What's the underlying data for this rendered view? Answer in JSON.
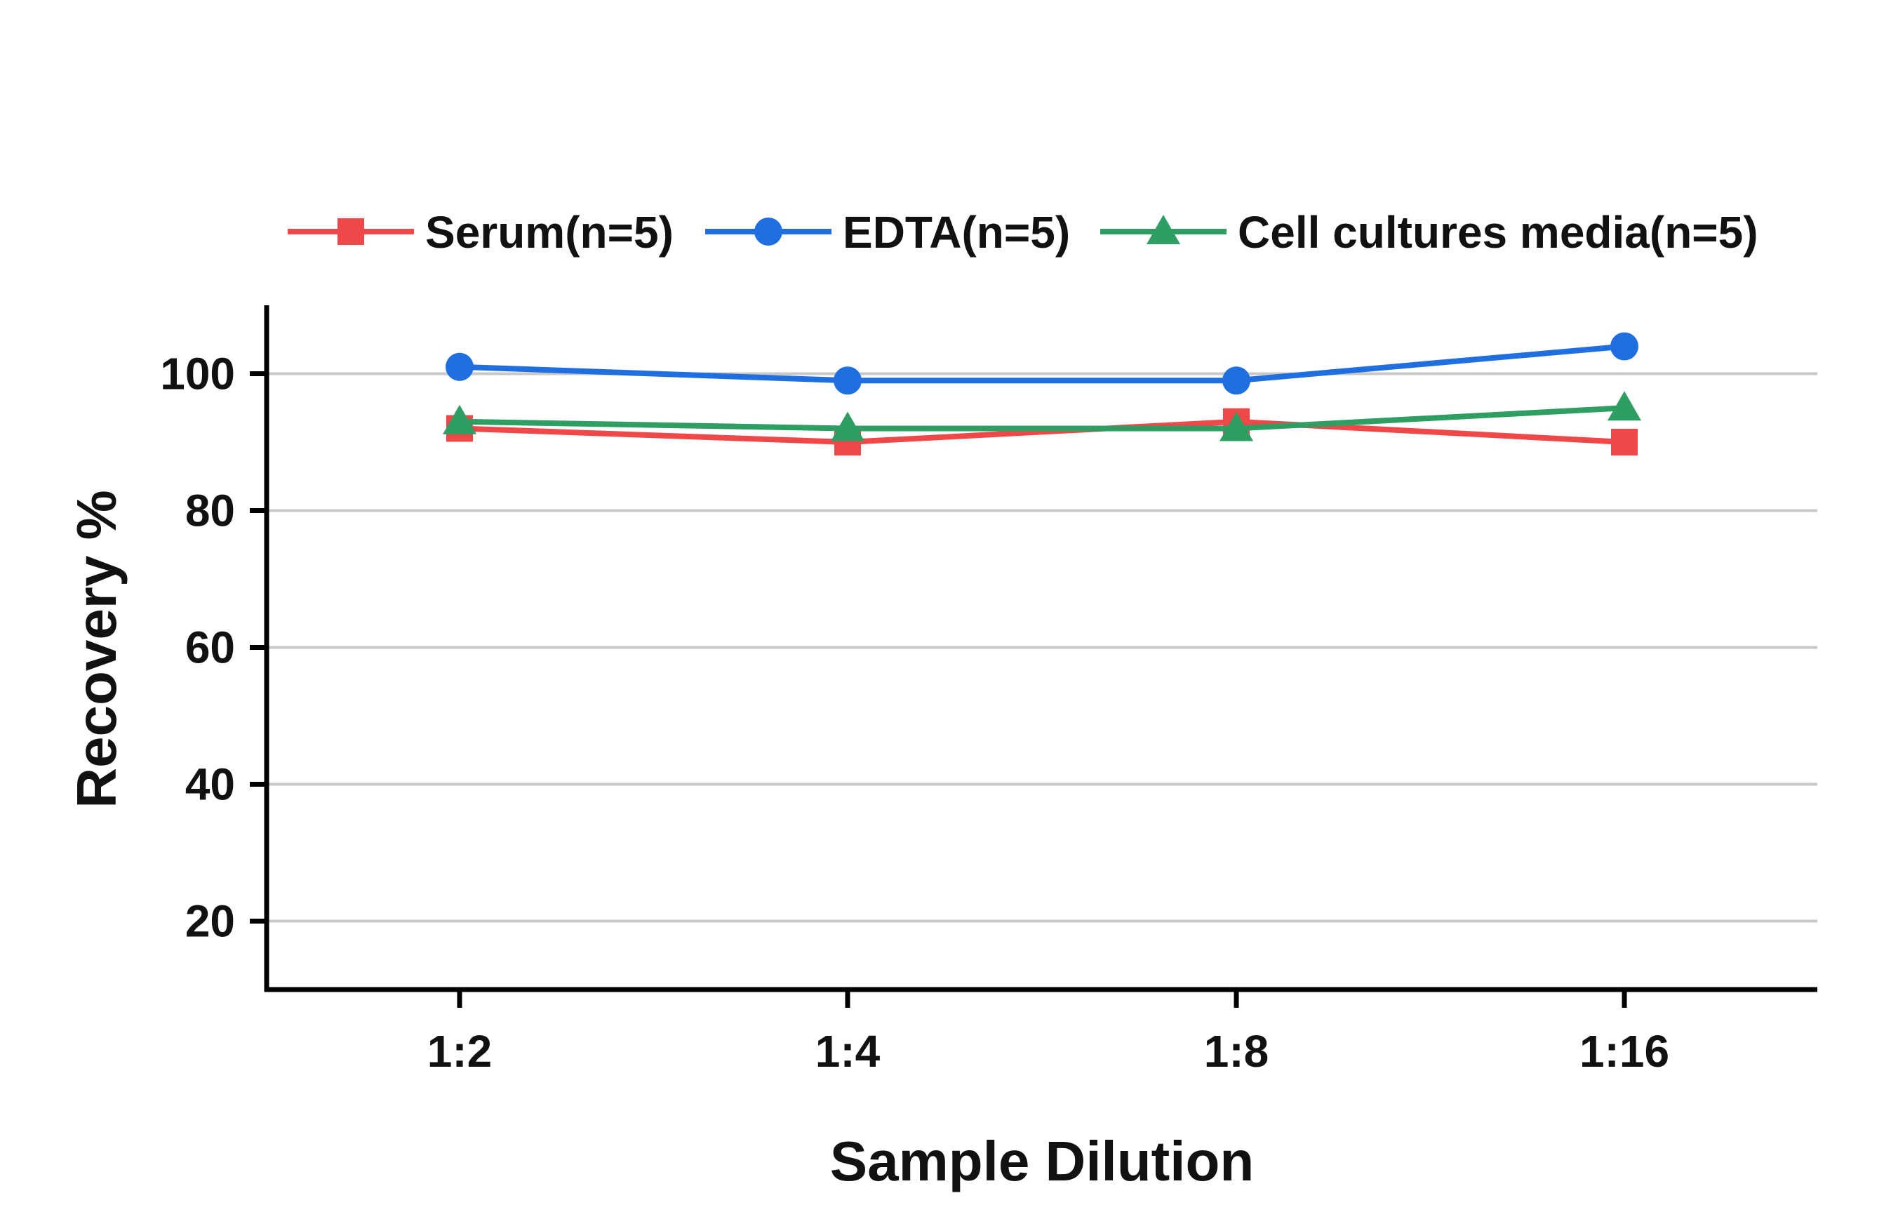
{
  "chart_data": {
    "type": "line",
    "title": "",
    "xlabel": "Sample Dilution",
    "ylabel": "Recovery %",
    "categories": [
      "1:2",
      "1:4",
      "1:8",
      "1:16"
    ],
    "yticks": [
      20,
      40,
      60,
      80,
      100
    ],
    "ylim": [
      10,
      110
    ],
    "grid": true,
    "legend_position": "top",
    "series": [
      {
        "name": "Serum(n=5)",
        "values": [
          92,
          90,
          93,
          90
        ],
        "color": "#f04848",
        "marker": "square"
      },
      {
        "name": "EDTA(n=5)",
        "values": [
          101,
          99,
          99,
          104
        ],
        "color": "#1f6fe0",
        "marker": "circle"
      },
      {
        "name": "Cell cultures media(n=5)",
        "values": [
          93,
          92,
          92,
          95
        ],
        "color": "#2e9e62",
        "marker": "triangle"
      }
    ]
  }
}
